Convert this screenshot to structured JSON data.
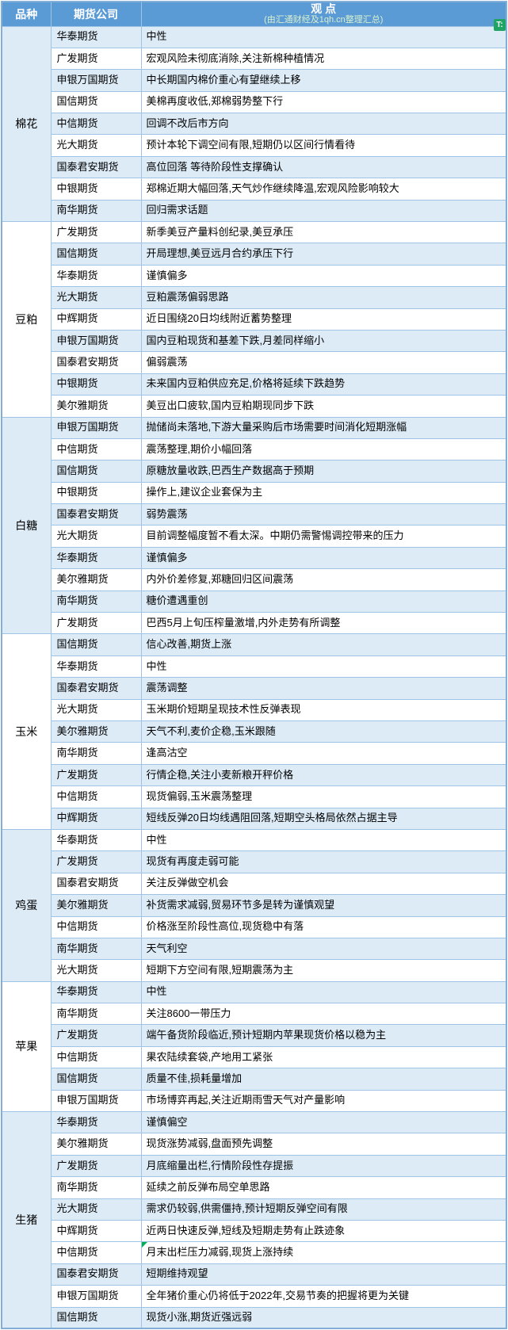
{
  "header": {
    "variety_col": "品种",
    "company_col": "期货公司",
    "viewpoint_title": "观  点",
    "viewpoint_subtitle": "(由汇通财经及1qh.cn整理汇总)",
    "badge": "T:"
  },
  "colors": {
    "header_bg": "#5B9BD5",
    "header_text": "#FFFFFF",
    "subtitle_text": "#D8F0CE",
    "stripe_blue": "#DDEBF7",
    "stripe_white": "#FFFFFF",
    "border": "#9EC3E4",
    "outer_border": "#83AED6",
    "badge_green": "#1FA463",
    "flag_green": "#00B050",
    "body_text": "#000000"
  },
  "sections": [
    {
      "name": "棉花",
      "shade": "blue",
      "rows": [
        {
          "company": "华泰期货",
          "view": "中性",
          "shade": "blue"
        },
        {
          "company": "广发期货",
          "view": "宏观风险未彻底消除,关注新棉种植情况",
          "shade": "white"
        },
        {
          "company": "申银万国期货",
          "view": "中长期国内棉价重心有望继续上移",
          "shade": "blue"
        },
        {
          "company": "国信期货",
          "view": "美棉再度收低,郑棉弱势整下行",
          "shade": "white"
        },
        {
          "company": "中信期货",
          "view": "回调不改后市方向",
          "shade": "blue"
        },
        {
          "company": "光大期货",
          "view": "预计本轮下调空间有限,短期仍以区间行情看待",
          "shade": "white"
        },
        {
          "company": "国泰君安期货",
          "view": "高位回落 等待阶段性支撑确认",
          "shade": "blue"
        },
        {
          "company": "中银期货",
          "view": "郑棉近期大幅回落,天气炒作继续降温,宏观风险影响较大",
          "shade": "white"
        },
        {
          "company": "南华期货",
          "view": "回归需求话题",
          "shade": "blue"
        }
      ]
    },
    {
      "name": "豆粕",
      "shade": "white",
      "rows": [
        {
          "company": "广发期货",
          "view": "新季美豆产量料创纪录,美豆承压",
          "shade": "white"
        },
        {
          "company": "国信期货",
          "view": "开局理想,美豆远月合约承压下行",
          "shade": "blue"
        },
        {
          "company": "华泰期货",
          "view": "谨慎偏多",
          "shade": "white"
        },
        {
          "company": "光大期货",
          "view": "豆粕震荡偏弱思路",
          "shade": "blue"
        },
        {
          "company": "中辉期货",
          "view": "近日围绕20日均线附近蓄势整理",
          "shade": "white"
        },
        {
          "company": "申银万国期货",
          "view": "国内豆粕现货和基差下跌,月差同样缩小",
          "shade": "blue"
        },
        {
          "company": "国泰君安期货",
          "view": "偏弱震荡",
          "shade": "white"
        },
        {
          "company": "中银期货",
          "view": "未来国内豆粕供应充足,价格将延续下跌趋势",
          "shade": "blue"
        },
        {
          "company": "美尔雅期货",
          "view": "美豆出口疲软,国内豆粕期现同步下跌",
          "shade": "white"
        }
      ]
    },
    {
      "name": "白糖",
      "shade": "blue",
      "rows": [
        {
          "company": "申银万国期货",
          "view": "抛储尚未落地,下游大量采购后市场需要时间消化短期涨幅",
          "shade": "blue"
        },
        {
          "company": "中信期货",
          "view": "震荡整理,期价小幅回落",
          "shade": "white"
        },
        {
          "company": "国信期货",
          "view": "原糖放量收跌,巴西生产数据高于预期",
          "shade": "blue"
        },
        {
          "company": "中银期货",
          "view": "操作上,建议企业套保为主",
          "shade": "white"
        },
        {
          "company": "国泰君安期货",
          "view": "弱势震荡",
          "shade": "blue"
        },
        {
          "company": "光大期货",
          "view": "目前调整幅度暂不看太深。中期仍需警惕调控带来的压力",
          "shade": "white"
        },
        {
          "company": "华泰期货",
          "view": "谨慎偏多",
          "shade": "blue"
        },
        {
          "company": "美尔雅期货",
          "view": "内外价差修复,郑糖回归区间震荡",
          "shade": "white"
        },
        {
          "company": "南华期货",
          "view": "糖价遭遇重创",
          "shade": "blue"
        },
        {
          "company": "广发期货",
          "view": "巴西5月上旬压榨量激增,内外走势有所调整",
          "shade": "white"
        }
      ]
    },
    {
      "name": "玉米",
      "shade": "white",
      "rows": [
        {
          "company": "国信期货",
          "view": "信心改善,期货上涨",
          "shade": "blue"
        },
        {
          "company": "华泰期货",
          "view": "中性",
          "shade": "white"
        },
        {
          "company": "国泰君安期货",
          "view": "震荡调整",
          "shade": "blue"
        },
        {
          "company": "光大期货",
          "view": "玉米期价短期呈现技术性反弹表现",
          "shade": "white"
        },
        {
          "company": "美尔雅期货",
          "view": "天气不利,麦价企稳,玉米跟随",
          "shade": "blue"
        },
        {
          "company": "南华期货",
          "view": "逢高沽空",
          "shade": "white"
        },
        {
          "company": "广发期货",
          "view": "行情企稳,关注小麦新粮开秤价格",
          "shade": "blue"
        },
        {
          "company": "中信期货",
          "view": "现货偏弱,玉米震荡整理",
          "shade": "white"
        },
        {
          "company": "中辉期货",
          "view": "短线反弹20日均线遇阻回落,短期空头格局依然占据主导",
          "shade": "blue"
        }
      ]
    },
    {
      "name": "鸡蛋",
      "shade": "blue",
      "rows": [
        {
          "company": "华泰期货",
          "view": "中性",
          "shade": "white"
        },
        {
          "company": "广发期货",
          "view": "现货有再度走弱可能",
          "shade": "blue"
        },
        {
          "company": "国泰君安期货",
          "view": "关注反弹做空机会",
          "shade": "white"
        },
        {
          "company": "美尔雅期货",
          "view": "补货需求减弱,贸易环节多是转为谨慎观望",
          "shade": "blue"
        },
        {
          "company": "中信期货",
          "view": "价格涨至阶段性高位,现货稳中有落",
          "shade": "white"
        },
        {
          "company": "南华期货",
          "view": "天气利空",
          "shade": "blue"
        },
        {
          "company": "光大期货",
          "view": "短期下方空间有限,短期震荡为主",
          "shade": "white"
        }
      ]
    },
    {
      "name": "苹果",
      "shade": "white",
      "rows": [
        {
          "company": "华泰期货",
          "view": "中性",
          "shade": "blue"
        },
        {
          "company": "南华期货",
          "view": "关注8600一带压力",
          "shade": "white"
        },
        {
          "company": "广发期货",
          "view": "端午备货阶段临近,预计短期内苹果现货价格以稳为主",
          "shade": "blue"
        },
        {
          "company": "中信期货",
          "view": "果农陆续套袋,产地用工紧张",
          "shade": "white"
        },
        {
          "company": "国信期货",
          "view": "质量不佳,损耗量增加",
          "shade": "blue"
        },
        {
          "company": "申银万国期货",
          "view": "市场博弈再起,关注近期雨雪天气对产量影响",
          "shade": "white"
        }
      ]
    },
    {
      "name": "生猪",
      "shade": "blue",
      "rows": [
        {
          "company": "华泰期货",
          "view": "谨慎偏空",
          "shade": "blue"
        },
        {
          "company": "美尔雅期货",
          "view": "现货涨势减弱,盘面预先调整",
          "shade": "white"
        },
        {
          "company": "广发期货",
          "view": "月底缩量出栏,行情阶段性存提振",
          "shade": "blue"
        },
        {
          "company": "南华期货",
          "view": "延续之前反弹布局空单思路",
          "shade": "white"
        },
        {
          "company": "光大期货",
          "view": "需求仍较弱,供需僵持,预计短期反弹空间有限",
          "shade": "blue"
        },
        {
          "company": "中辉期货",
          "view": "近两日快速反弹,短线及短期走势有止跌迹象",
          "shade": "white"
        },
        {
          "company": "中信期货",
          "view": "月末出栏压力减弱,现货上涨持续",
          "shade": "white",
          "flag": true
        },
        {
          "company": "国泰君安期货",
          "view": "短期维持观望",
          "shade": "blue"
        },
        {
          "company": "申银万国期货",
          "view": "全年猪价重心仍将低于2022年,交易节奏的把握将更为关键",
          "shade": "white"
        },
        {
          "company": "国信期货",
          "view": "现货小涨,期货近强远弱",
          "shade": "blue"
        }
      ]
    }
  ]
}
